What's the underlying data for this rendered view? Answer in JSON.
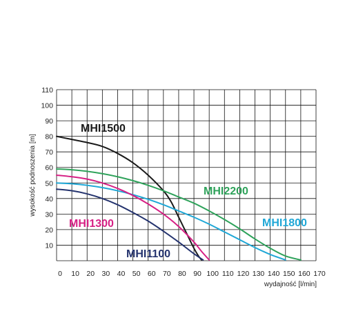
{
  "chart_data": {
    "type": "line",
    "title": "",
    "xlabel": "wydajność [l/min]",
    "ylabel": "wysokość podnoszenia [m]",
    "xlim": [
      0,
      170
    ],
    "ylim": [
      0,
      110
    ],
    "xticks": [
      0,
      10,
      20,
      30,
      40,
      50,
      60,
      70,
      80,
      90,
      100,
      110,
      120,
      130,
      140,
      150,
      160,
      170
    ],
    "yticks": [
      10,
      20,
      30,
      40,
      50,
      60,
      70,
      80,
      90,
      100,
      110
    ],
    "grid": true,
    "legend": "inline labels",
    "series": [
      {
        "name": "MHI1500",
        "color": "#1a1a1a",
        "points": [
          [
            0,
            80
          ],
          [
            10,
            78
          ],
          [
            20,
            76
          ],
          [
            30,
            73.5
          ],
          [
            40,
            69
          ],
          [
            50,
            63
          ],
          [
            60,
            55
          ],
          [
            70,
            45
          ],
          [
            75,
            38
          ],
          [
            80,
            28
          ],
          [
            85,
            18
          ],
          [
            90,
            8
          ],
          [
            93,
            3
          ],
          [
            95,
            0.5
          ]
        ]
      },
      {
        "name": "MHI2200",
        "color": "#2ea25a",
        "points": [
          [
            0,
            59
          ],
          [
            10,
            58.5
          ],
          [
            20,
            57.5
          ],
          [
            30,
            56
          ],
          [
            40,
            54
          ],
          [
            50,
            51.5
          ],
          [
            60,
            48.5
          ],
          [
            70,
            45
          ],
          [
            80,
            41
          ],
          [
            90,
            37
          ],
          [
            100,
            32
          ],
          [
            110,
            26.5
          ],
          [
            120,
            20.5
          ],
          [
            130,
            14
          ],
          [
            140,
            8
          ],
          [
            150,
            3
          ],
          [
            160,
            0.5
          ]
        ]
      },
      {
        "name": "MHI1800",
        "color": "#1fa7d6",
        "points": [
          [
            0,
            50
          ],
          [
            10,
            49.5
          ],
          [
            20,
            48.5
          ],
          [
            30,
            47
          ],
          [
            40,
            45
          ],
          [
            50,
            42.5
          ],
          [
            60,
            39.5
          ],
          [
            70,
            36
          ],
          [
            80,
            32
          ],
          [
            90,
            28
          ],
          [
            100,
            23.5
          ],
          [
            110,
            18.5
          ],
          [
            120,
            13.5
          ],
          [
            130,
            8.5
          ],
          [
            140,
            4
          ],
          [
            150,
            0.5
          ]
        ]
      },
      {
        "name": "MHI1300",
        "color": "#d61f84",
        "points": [
          [
            0,
            55
          ],
          [
            10,
            54
          ],
          [
            20,
            52.5
          ],
          [
            30,
            50
          ],
          [
            40,
            46.5
          ],
          [
            50,
            42
          ],
          [
            60,
            36.5
          ],
          [
            70,
            30
          ],
          [
            80,
            22
          ],
          [
            90,
            12
          ],
          [
            95,
            6
          ],
          [
            100,
            0.5
          ]
        ]
      },
      {
        "name": "MHI1100",
        "color": "#24336e",
        "points": [
          [
            0,
            46
          ],
          [
            10,
            45
          ],
          [
            20,
            43
          ],
          [
            30,
            40
          ],
          [
            40,
            36
          ],
          [
            50,
            31
          ],
          [
            60,
            25.5
          ],
          [
            70,
            19
          ],
          [
            80,
            12
          ],
          [
            90,
            4.5
          ],
          [
            96,
            0.5
          ]
        ]
      }
    ]
  }
}
